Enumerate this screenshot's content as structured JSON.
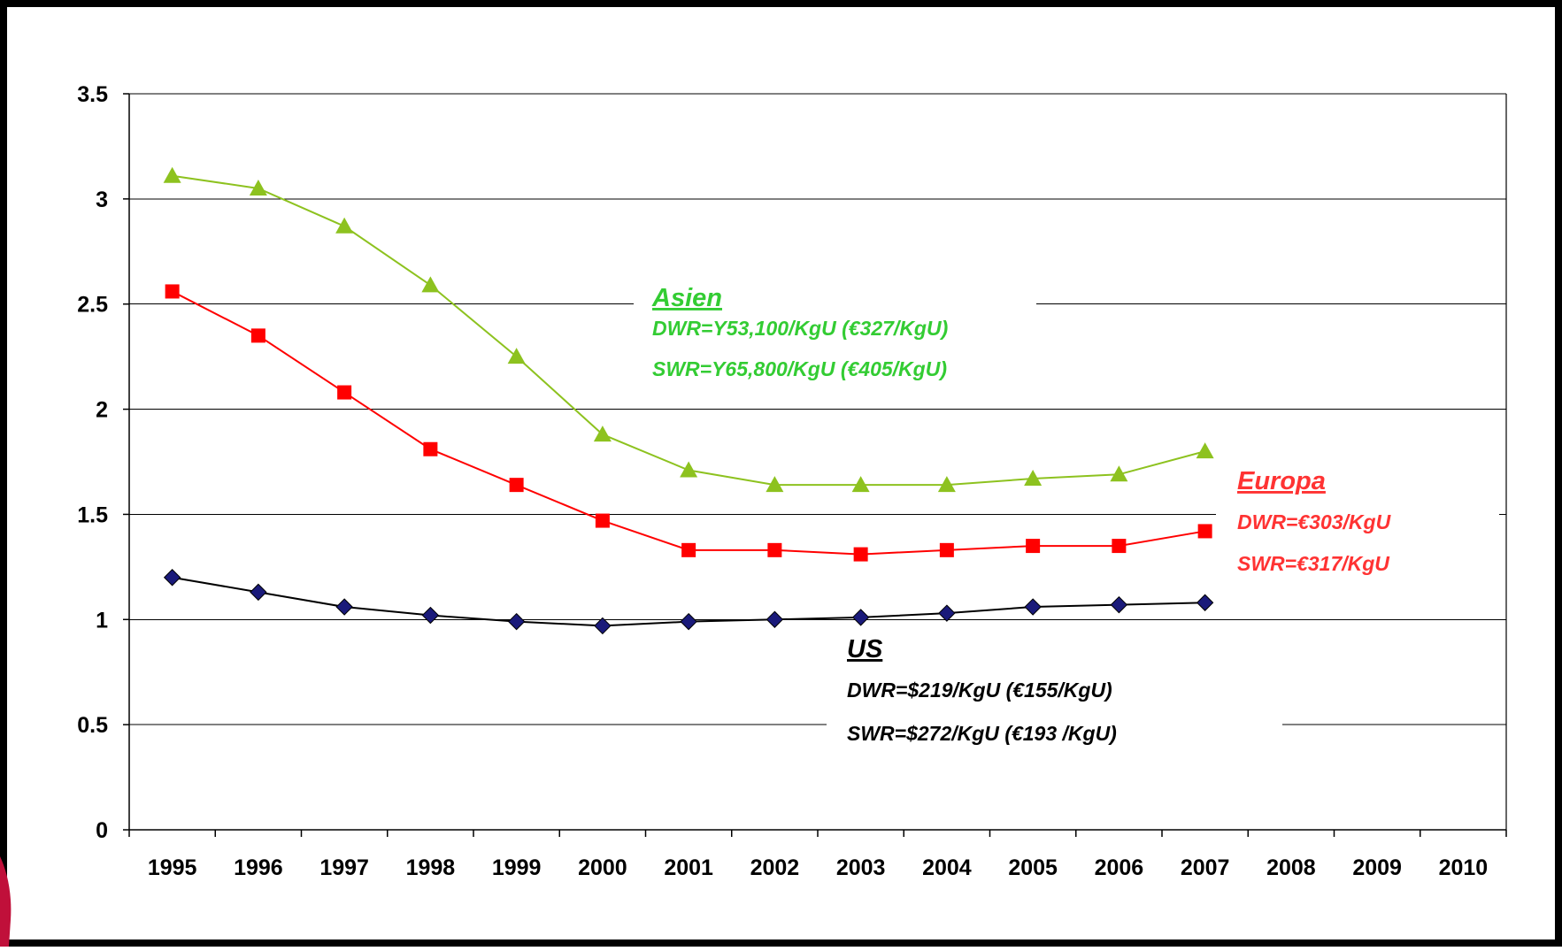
{
  "chart_data": {
    "type": "line",
    "title": "",
    "xlabel": "",
    "ylabel": "",
    "x_ticks": [
      "1995",
      "1996",
      "1997",
      "1998",
      "1999",
      "2000",
      "2001",
      "2002",
      "2003",
      "2004",
      "2005",
      "2006",
      "2007",
      "2008",
      "2009",
      "2010"
    ],
    "y_ticks": [
      "0",
      "0.5",
      "1",
      "1.5",
      "2",
      "2.5",
      "3",
      "3.5"
    ],
    "ylim": [
      0,
      3.5
    ],
    "grid": "horizontal",
    "x": [
      1995,
      1996,
      1997,
      1998,
      1999,
      2000,
      2001,
      2002,
      2003,
      2004,
      2005,
      2006,
      2007
    ],
    "series": [
      {
        "key": "asien",
        "color": "#8DC21F",
        "marker": "triangle",
        "values": [
          3.11,
          3.05,
          2.87,
          2.59,
          2.25,
          1.88,
          1.71,
          1.64,
          1.64,
          1.64,
          1.67,
          1.69,
          1.8
        ]
      },
      {
        "key": "europa",
        "color": "#FF0000",
        "marker": "square",
        "values": [
          2.56,
          2.35,
          2.08,
          1.81,
          1.64,
          1.47,
          1.33,
          1.33,
          1.31,
          1.33,
          1.35,
          1.35,
          1.42
        ]
      },
      {
        "key": "us",
        "color": "#000000",
        "marker_color": "#1A1A7A",
        "marker": "diamond",
        "values": [
          1.2,
          1.13,
          1.06,
          1.02,
          0.99,
          0.97,
          0.99,
          1.0,
          1.01,
          1.03,
          1.06,
          1.07,
          1.08
        ]
      }
    ],
    "annotations": [
      {
        "key": "asien",
        "color": "#33CC33",
        "title": "Asien",
        "lines": [
          "DWR=Y53,100/KgU (€327/KgU)",
          "SWR=Y65,800/KgU (€405/KgU)"
        ]
      },
      {
        "key": "europa",
        "color": "#FF3333",
        "title": "Europa",
        "lines": [
          "DWR=€303/KgU",
          "SWR=€317/KgU"
        ]
      },
      {
        "key": "us",
        "color": "#000000",
        "title": "US",
        "lines": [
          "DWR=$219/KgU (€155/KgU)",
          "SWR=$272/KgU (€193 /KgU)"
        ]
      }
    ]
  },
  "decor": {
    "frame_color": "#000000",
    "corner_accent_color": "#C0103A"
  }
}
